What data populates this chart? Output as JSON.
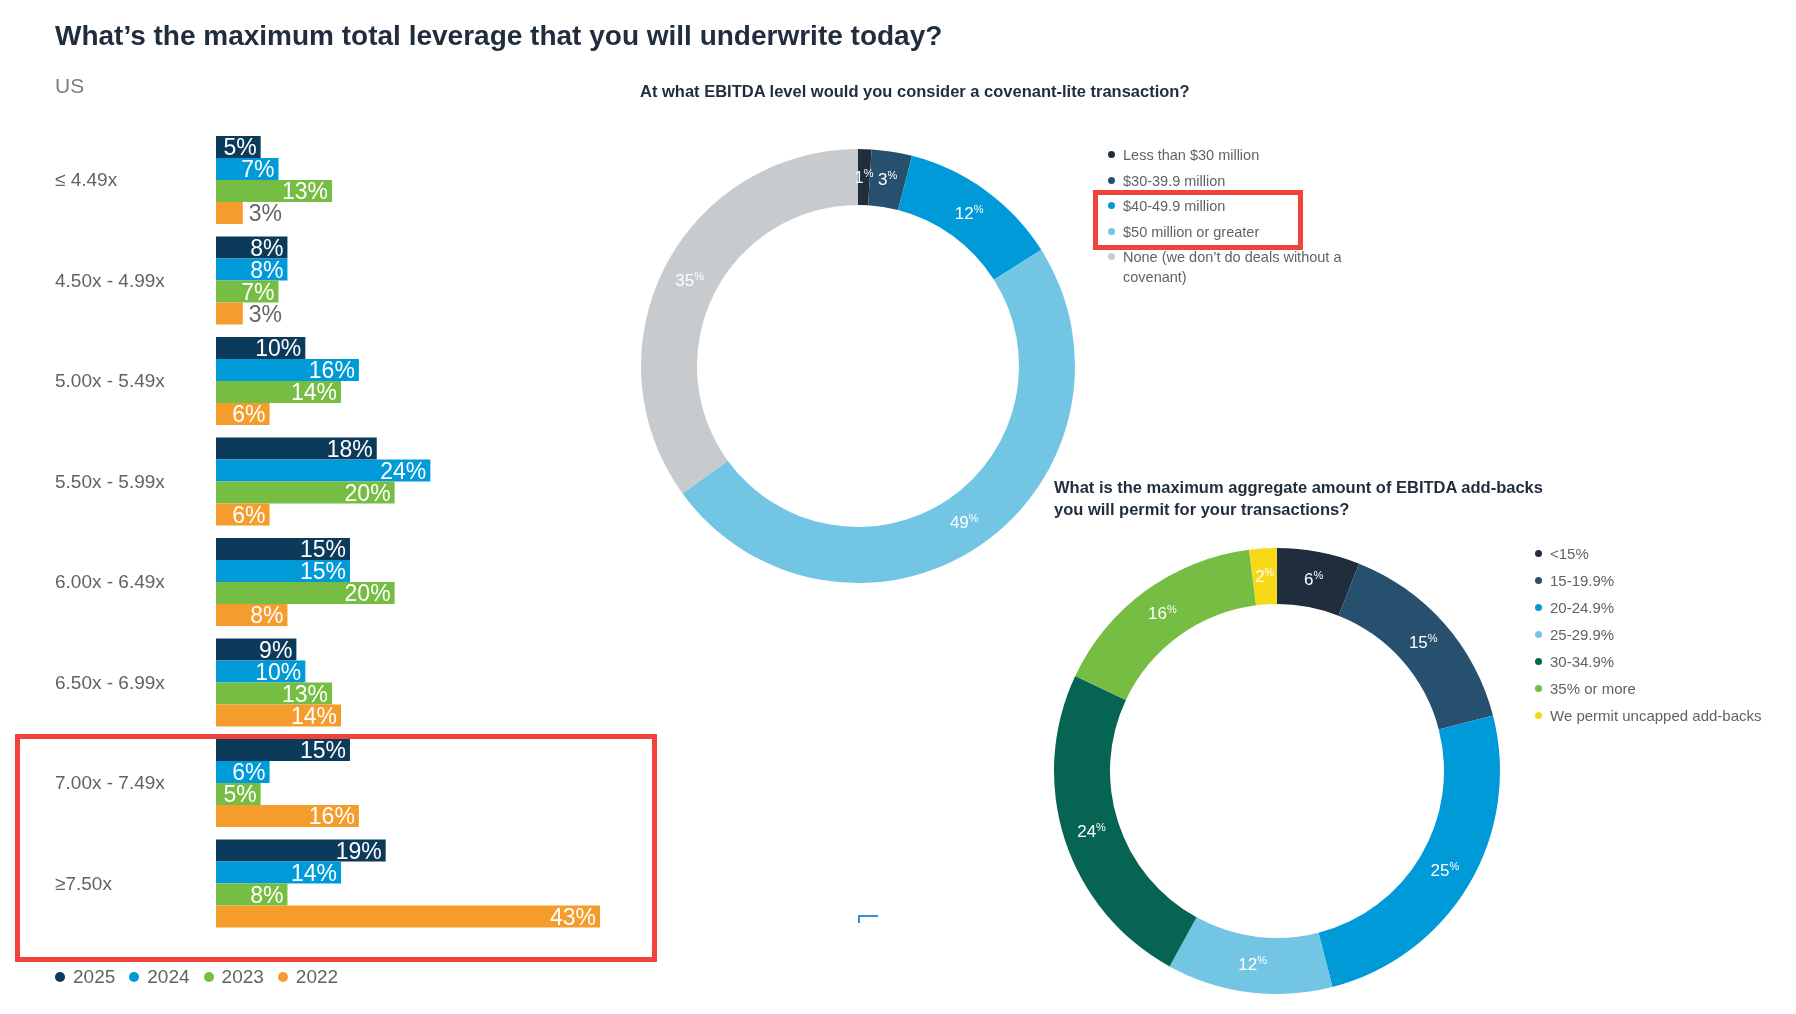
{
  "chart_data": [
    {
      "type": "bar",
      "orientation": "horizontal",
      "title": "What’s the maximum total leverage that you will underwrite today?",
      "subtitle": "US",
      "categories": [
        "≤ 4.49x",
        "4.50x - 4.99x",
        "5.00x - 5.49x",
        "5.50x - 5.99x",
        "6.00x - 6.49x",
        "6.50x - 6.99x",
        "7.00x - 7.49x",
        "≥7.50x"
      ],
      "series": [
        {
          "name": "2025",
          "color": "#0b3a5b",
          "values": [
            5,
            8,
            10,
            18,
            15,
            9,
            15,
            19
          ],
          "value_labels": [
            "5%",
            "8%",
            "10%",
            "18%",
            "15%",
            "9%",
            "15%",
            "19%"
          ]
        },
        {
          "name": "2024",
          "color": "#009ad9",
          "values": [
            7,
            8,
            16,
            24,
            15,
            10,
            6,
            14
          ],
          "value_labels": [
            "7%",
            "8%",
            "16%",
            "24%",
            "15%",
            "10%",
            "6%",
            "14%"
          ]
        },
        {
          "name": "2023",
          "color": "#76bd43",
          "values": [
            13,
            7,
            14,
            20,
            20,
            13,
            5,
            8
          ],
          "value_labels": [
            "13%",
            "7%",
            "14%",
            "20%",
            "20%",
            "13%",
            "5%",
            "8%"
          ]
        },
        {
          "name": "2022",
          "color": "#f49c2c",
          "values": [
            3,
            3,
            6,
            6,
            8,
            14,
            16,
            43
          ],
          "value_labels": [
            "3%",
            "3%",
            "6%",
            "6%",
            "8%",
            "14%",
            "16%",
            "43%"
          ]
        }
      ],
      "tick_labels": "y",
      "legend": "bottom",
      "grid": false
    },
    {
      "type": "donut",
      "title": "At what EBITDA level would you consider a covenant-lite transaction?",
      "categories": [
        "Less than $30 million",
        "$30-39.9 million",
        "$40-49.9 million",
        "$50 million or greater",
        "None (we don’t do deals without a covenant)"
      ],
      "values": [
        1,
        3,
        12,
        49,
        35
      ],
      "value_labels": [
        "1$^{%}$",
        "3$^{%}$",
        "12$^{%}$",
        "49$^{%}$",
        "35$^{%}$"
      ],
      "colors": [
        "#1f2d3d",
        "#27506f",
        "#009ad9",
        "#73c5e4",
        "#c8cbce"
      ],
      "legend": "right"
    },
    {
      "type": "donut",
      "title": "What is the maximum aggregate amount of EBITDA add-backs you will permit for your transactions?",
      "categories": [
        "<15%",
        "15-19.9%",
        "20-24.9%",
        "25-29.9%",
        "30-34.9%",
        "35% or more",
        "We permit uncapped add-backs"
      ],
      "values": [
        6,
        15,
        25,
        12,
        24,
        16,
        2
      ],
      "value_labels": [
        "6$^{%}$",
        "15$^{%}$",
        "25$^{%}$",
        "12$^{%}$",
        "24$^{%}$",
        "16$^{%}$",
        "2$^{%}$"
      ],
      "colors": [
        "#1f2d3d",
        "#27506f",
        "#009ad9",
        "#73c5e4",
        "#066452",
        "#76bd43",
        "#f7d918"
      ],
      "legend": "right"
    }
  ]
}
